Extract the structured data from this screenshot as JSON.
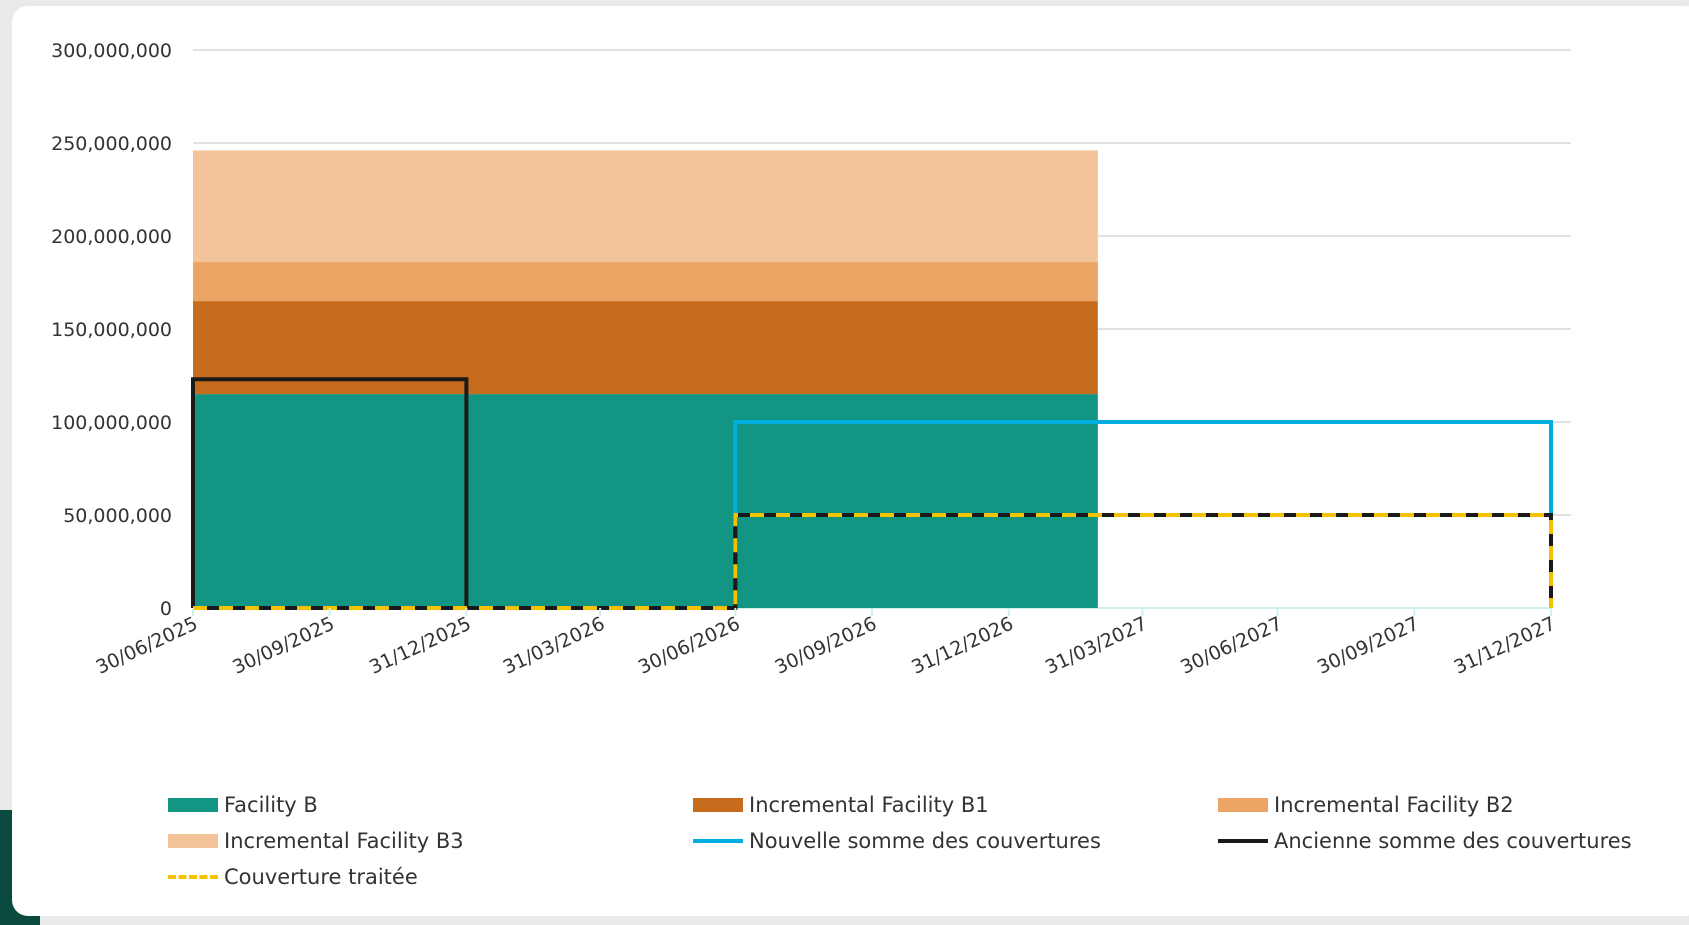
{
  "chart_data": {
    "type": "area",
    "x_start": "30/06/2025",
    "x_end": "31/12/2027",
    "x_ticks": [
      "30/06/2025",
      "30/09/2025",
      "31/12/2025",
      "31/03/2026",
      "30/06/2026",
      "30/09/2026",
      "31/12/2026",
      "31/03/2027",
      "30/06/2027",
      "30/09/2027",
      "31/12/2027"
    ],
    "y_ticks": [
      "0",
      "50,000,000",
      "100,000,000",
      "150,000,000",
      "200,000,000",
      "250,000,000",
      "300,000,000"
    ],
    "ylim": [
      0,
      300000000
    ],
    "grid": true,
    "legend_position": "bottom",
    "stacked_series": [
      {
        "name": "Facility B",
        "color": "#139583",
        "start": "30/06/2025",
        "end": "01/03/2027",
        "value": 115000000
      },
      {
        "name": "Incremental Facility B1",
        "color": "#c76b1c",
        "start": "30/06/2025",
        "end": "01/03/2027",
        "value": 50000000
      },
      {
        "name": "Incremental Facility B2",
        "color": "#eca465",
        "start": "30/06/2025",
        "end": "01/03/2027",
        "value": 21000000
      },
      {
        "name": "Incremental Facility B3",
        "color": "#f3c399",
        "start": "30/06/2025",
        "end": "01/03/2027",
        "value": 60000000
      }
    ],
    "line_series": [
      {
        "name": "Nouvelle somme des couvertures",
        "color": "#00aee0",
        "style": "solid",
        "points": [
          [
            "30/06/2025",
            0
          ],
          [
            "30/06/2026",
            0
          ],
          [
            "30/06/2026",
            100000000
          ],
          [
            "31/12/2027",
            100000000
          ],
          [
            "31/12/2027",
            0
          ]
        ]
      },
      {
        "name": "Ancienne somme des couvertures",
        "color": "#1a1a1a",
        "style": "solid",
        "points": [
          [
            "30/06/2025",
            0
          ],
          [
            "30/06/2025",
            123000000
          ],
          [
            "31/12/2025",
            123000000
          ],
          [
            "31/12/2025",
            0
          ],
          [
            "30/06/2026",
            0
          ],
          [
            "30/06/2026",
            50000000
          ],
          [
            "31/12/2027",
            50000000
          ],
          [
            "31/12/2027",
            0
          ]
        ]
      },
      {
        "name": "Couverture traitée",
        "color": "#f2c200",
        "style": "dashed",
        "points": [
          [
            "30/06/2025",
            0
          ],
          [
            "30/06/2026",
            0
          ],
          [
            "30/06/2026",
            50000000
          ],
          [
            "31/12/2027",
            50000000
          ],
          [
            "31/12/2027",
            0
          ]
        ]
      }
    ]
  },
  "legend": [
    {
      "label": "Facility B",
      "color": "#139583",
      "kind": "box"
    },
    {
      "label": "Incremental Facility B1",
      "color": "#c76b1c",
      "kind": "box"
    },
    {
      "label": "Incremental Facility B2",
      "color": "#eca465",
      "kind": "box"
    },
    {
      "label": "Incremental Facility B3",
      "color": "#f3c399",
      "kind": "box"
    },
    {
      "label": "Nouvelle somme des couvertures",
      "color": "#00aee0",
      "kind": "line"
    },
    {
      "label": "Ancienne somme des couvertures",
      "color": "#1a1a1a",
      "kind": "line"
    },
    {
      "label": "Couverture traitée",
      "color": "#f2c200",
      "kind": "dash"
    }
  ]
}
